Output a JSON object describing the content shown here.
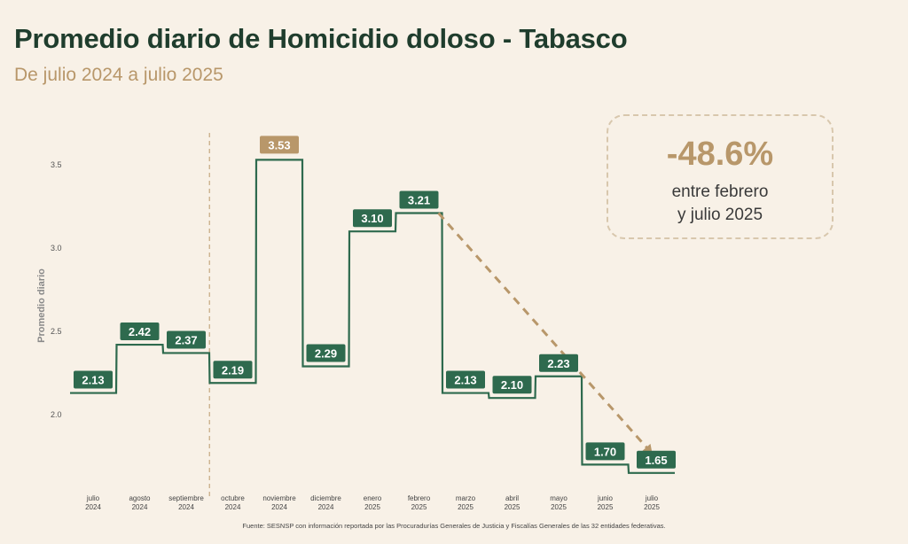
{
  "header": {
    "title": "Promedio diario de Homicidio doloso - Tabasco",
    "subtitle": "De julio 2024 a julio 2025"
  },
  "callout": {
    "value": "-48.6%",
    "line1": "entre febrero",
    "line2": "y julio 2025"
  },
  "source": "Fuente: SESNSP con información reportada por las Procuradurías Generales de Justicia y Fiscalías Generales de las 32 entidades federativas.",
  "colors": {
    "line": "#2e6a4e",
    "label_bg": "#2e6a4e",
    "highlight": "#b8976a",
    "trend": "#b8976a",
    "divider": "#c9ad88"
  },
  "chart_data": {
    "type": "line",
    "style": "step",
    "ylabel": "Promedio diario",
    "ylim": [
      1.8,
      3.75
    ],
    "yticks": [
      2.0,
      2.5,
      3.0,
      3.5
    ],
    "ytick_labels": [
      "2.0",
      "2.5",
      "3.0",
      "3.5"
    ],
    "categories": [
      [
        "julio",
        "2024"
      ],
      [
        "agosto",
        "2024"
      ],
      [
        "septiembre",
        "2024"
      ],
      [
        "octubre",
        "2024"
      ],
      [
        "noviembre",
        "2024"
      ],
      [
        "diciembre",
        "2024"
      ],
      [
        "enero",
        "2025"
      ],
      [
        "febrero",
        "2025"
      ],
      [
        "marzo",
        "2025"
      ],
      [
        "abril",
        "2025"
      ],
      [
        "mayo",
        "2025"
      ],
      [
        "junio",
        "2025"
      ],
      [
        "julio",
        "2025"
      ]
    ],
    "values": [
      2.13,
      2.42,
      2.37,
      2.19,
      3.53,
      2.29,
      3.1,
      3.21,
      2.13,
      2.1,
      2.23,
      1.7,
      1.65
    ],
    "labels": [
      "2.13",
      "2.42",
      "2.37",
      "2.19",
      "3.53",
      "2.29",
      "3.10",
      "3.21",
      "2.13",
      "2.10",
      "2.23",
      "1.70",
      "1.65"
    ],
    "highlight_index": 4,
    "divider_after_index": 2,
    "trend": {
      "from_index": 7,
      "to_index": 12
    }
  }
}
